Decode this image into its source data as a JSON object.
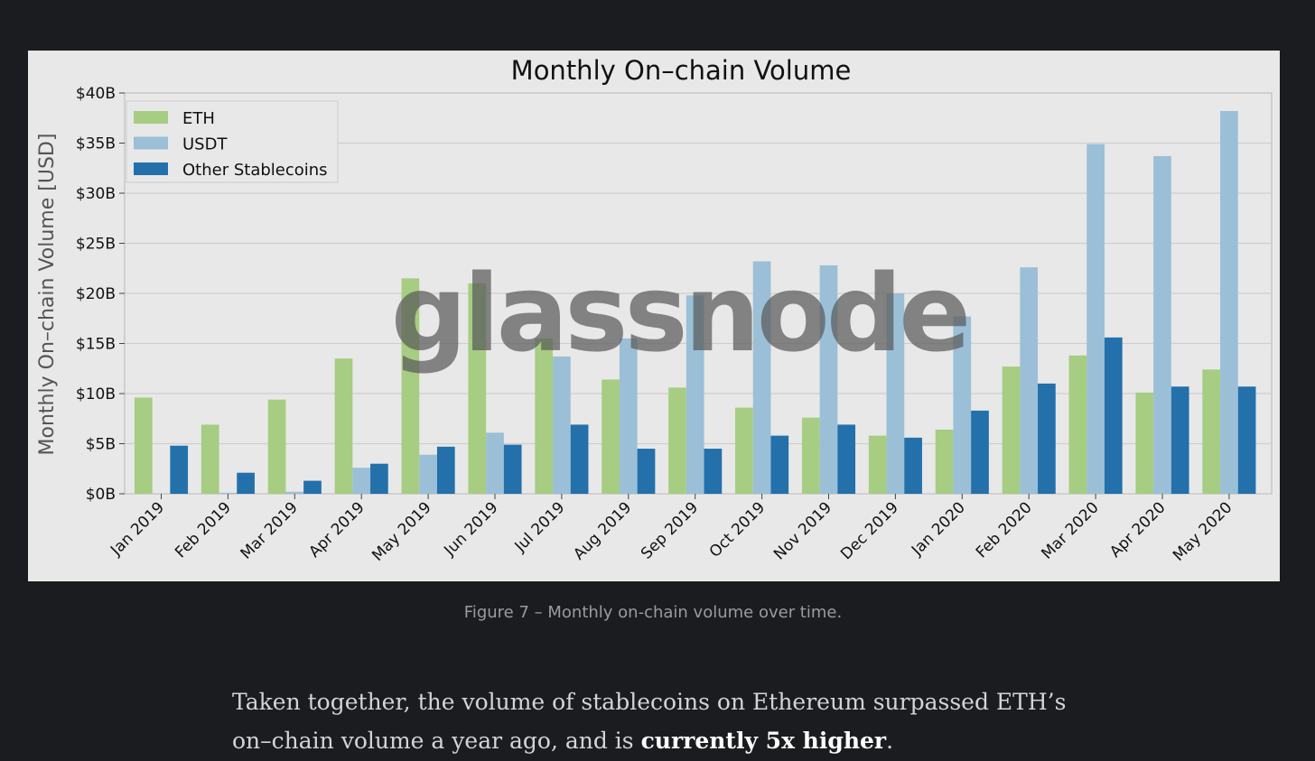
{
  "chart_data": {
    "type": "bar",
    "title": "Monthly On–chain Volume",
    "xlabel": "",
    "ylabel": "Monthly On–chain Volume [USD]",
    "ylim": [
      0,
      40
    ],
    "y_ticks": [
      0,
      5,
      10,
      15,
      20,
      25,
      30,
      35,
      40
    ],
    "y_tick_labels": [
      "$0B",
      "$5B",
      "$10B",
      "$15B",
      "$20B",
      "$25B",
      "$30B",
      "$35B",
      "$40B"
    ],
    "y_unit": "billions USD",
    "grid": true,
    "legend_position": "top-left",
    "watermark": "glassnode",
    "categories": [
      "Jan 2019",
      "Feb 2019",
      "Mar 2019",
      "Apr 2019",
      "May 2019",
      "Jun 2019",
      "Jul 2019",
      "Aug 2019",
      "Sep 2019",
      "Oct 2019",
      "Nov 2019",
      "Dec 2019",
      "Jan 2020",
      "Feb 2020",
      "Mar 2020",
      "Apr 2020",
      "May 2020"
    ],
    "series": [
      {
        "name": "ETH",
        "color": "#a6cd82",
        "values": [
          9.6,
          6.9,
          9.4,
          13.5,
          21.5,
          21.0,
          15.5,
          11.4,
          10.6,
          8.6,
          7.6,
          5.8,
          6.4,
          12.7,
          13.8,
          10.1,
          12.4
        ]
      },
      {
        "name": "USDT",
        "color": "#9bbfd6",
        "values": [
          0.0,
          0.1,
          0.2,
          2.6,
          3.9,
          6.1,
          13.7,
          15.5,
          19.8,
          23.2,
          22.8,
          20.0,
          17.7,
          22.6,
          34.9,
          33.7,
          38.2
        ]
      },
      {
        "name": "Other Stablecoins",
        "color": "#2370ab",
        "values": [
          4.8,
          2.1,
          1.3,
          3.0,
          4.7,
          4.9,
          6.9,
          4.5,
          4.5,
          5.8,
          6.9,
          5.6,
          8.3,
          11.0,
          15.6,
          10.7,
          10.7
        ]
      }
    ]
  },
  "caption": "Figure 7 – Monthly on-chain volume over time.",
  "paragraph": {
    "text_before": "Taken together, the volume of stablecoins on Ethereum surpassed ETH’s on–chain volume a year ago, and is ",
    "bold": "currently 5x higher",
    "text_after": "."
  }
}
